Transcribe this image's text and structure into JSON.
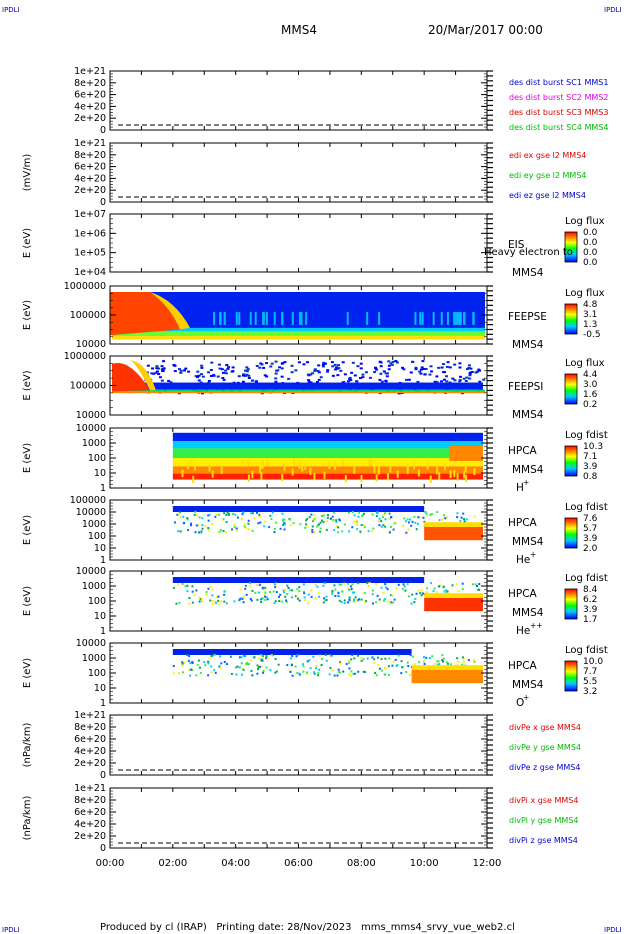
{
  "corner_labels": {
    "top_left": "IPDLI",
    "top_right": "IPDLI",
    "bottom_left": "IPDLI",
    "bottom_right": "IPDLI"
  },
  "header": {
    "spacecraft": "MMS4",
    "datetime": "20/Mar/2017 00:00"
  },
  "footer": "Produced by cl (IRAP)   Printing date: 28/Nov/2023   mms_mms4_srvy_vue_web2.cl",
  "time_axis": {
    "start": "00:00",
    "end": "12:00",
    "ticks": [
      "00:00",
      "02:00",
      "04:00",
      "06:00",
      "08:00",
      "10:00",
      "12:00"
    ]
  },
  "chart_data": [
    {
      "type": "line",
      "name": "des dist burst",
      "ylabel": "",
      "ticks": [
        "1e+21",
        "8e+20",
        "6e+20",
        "4e+20",
        "2e+20",
        "0"
      ],
      "series": [
        {
          "name": "des dist burst SC1 MMS1",
          "color": "#0000cc"
        },
        {
          "name": "des dist burst SC2 MMS2",
          "color": "#e000e0"
        },
        {
          "name": "des dist burst SC3 MMS3",
          "color": "#dd0000"
        },
        {
          "name": "des dist burst SC4 MMS4",
          "color": "#00bb00"
        }
      ]
    },
    {
      "type": "line",
      "name": "edi",
      "ylabel": "(mV/m)",
      "ticks": [
        "1e+21",
        "8e+20",
        "6e+20",
        "4e+20",
        "2e+20",
        "0"
      ],
      "series": [
        {
          "name": "edi ex gse l2 MMS4",
          "color": "#dd0000"
        },
        {
          "name": "edi ey gse l2 MMS4",
          "color": "#00bb00"
        },
        {
          "name": "edi ez gse l2 MMS4",
          "color": "#0000cc"
        }
      ]
    },
    {
      "type": "heatmap",
      "name": "EIS",
      "ylabel": "E (eV)",
      "ticks": [
        "1e+07",
        "1e+06",
        "1e+05",
        "1e+04"
      ],
      "right_label": [
        "EIS",
        "MMS4"
      ],
      "overlay": "Heavy electron to",
      "cbar_title": "Log flux",
      "cbar_ticks": [
        "0.0",
        "0.0",
        "0.0",
        "0.0"
      ]
    },
    {
      "type": "heatmap",
      "name": "FEEPSE",
      "ylabel": "E (eV)",
      "ticks": [
        "1000000",
        "100000",
        "10000"
      ],
      "right_label": [
        "FEEPSE",
        "MMS4"
      ],
      "cbar_title": "Log flux",
      "cbar_ticks": [
        "4.8",
        "3.1",
        "1.3",
        "-0.5"
      ]
    },
    {
      "type": "heatmap",
      "name": "FEEPSI",
      "ylabel": "E (eV)",
      "ticks": [
        "1000000",
        "100000",
        "10000"
      ],
      "right_label": [
        "FEEPSI",
        "MMS4"
      ],
      "cbar_title": "Log flux",
      "cbar_ticks": [
        "4.4",
        "3.0",
        "1.6",
        "0.2"
      ]
    },
    {
      "type": "heatmap",
      "name": "HPCA H+",
      "ylabel": "E (eV)",
      "ticks": [
        "10000",
        "1000",
        "100",
        "10",
        "1"
      ],
      "right_label": [
        "HPCA",
        "MMS4",
        "H",
        "+"
      ],
      "cbar_title": "Log fdist",
      "cbar_ticks": [
        "10.3",
        "7.1",
        "3.9",
        "0.8"
      ]
    },
    {
      "type": "heatmap",
      "name": "HPCA He+",
      "ylabel": "E (eV)",
      "ticks": [
        "100000",
        "10000",
        "1000",
        "100",
        "10",
        "1"
      ],
      "right_label": [
        "HPCA",
        "MMS4",
        "He",
        "+"
      ],
      "cbar_title": "Log fdist",
      "cbar_ticks": [
        "7.6",
        "5.7",
        "3.9",
        "2.0"
      ]
    },
    {
      "type": "heatmap",
      "name": "HPCA He++",
      "ylabel": "E (eV)",
      "ticks": [
        "10000",
        "1000",
        "100",
        "10",
        "1"
      ],
      "right_label": [
        "HPCA",
        "MMS4",
        "He",
        "++"
      ],
      "cbar_title": "Log fdist",
      "cbar_ticks": [
        "8.4",
        "6.2",
        "3.9",
        "1.7"
      ]
    },
    {
      "type": "heatmap",
      "name": "HPCA O+",
      "ylabel": "E (eV)",
      "ticks": [
        "10000",
        "1000",
        "100",
        "10",
        "1"
      ],
      "right_label": [
        "HPCA",
        "MMS4",
        "O",
        "+"
      ],
      "cbar_title": "Log fdist",
      "cbar_ticks": [
        "10.0",
        "7.7",
        "5.5",
        "3.2"
      ]
    },
    {
      "type": "line",
      "name": "divPe",
      "ylabel": "(nPa/km)",
      "ticks": [
        "1e+21",
        "8e+20",
        "6e+20",
        "4e+20",
        "2e+20",
        "0"
      ],
      "series": [
        {
          "name": "divPe x gse MMS4",
          "color": "#dd0000"
        },
        {
          "name": "divPe y gse MMS4",
          "color": "#00bb00"
        },
        {
          "name": "divPe z gse MMS4",
          "color": "#0000cc"
        }
      ]
    },
    {
      "type": "line",
      "name": "divPi",
      "ylabel": "(nPa/km)",
      "ticks": [
        "1e+21",
        "8e+20",
        "6e+20",
        "4e+20",
        "2e+20",
        "0"
      ],
      "series": [
        {
          "name": "divPi x gse MMS4",
          "color": "#dd0000"
        },
        {
          "name": "divPi y gse MMS4",
          "color": "#00bb00"
        },
        {
          "name": "divPi z gse MMS4",
          "color": "#0000cc"
        }
      ]
    }
  ]
}
